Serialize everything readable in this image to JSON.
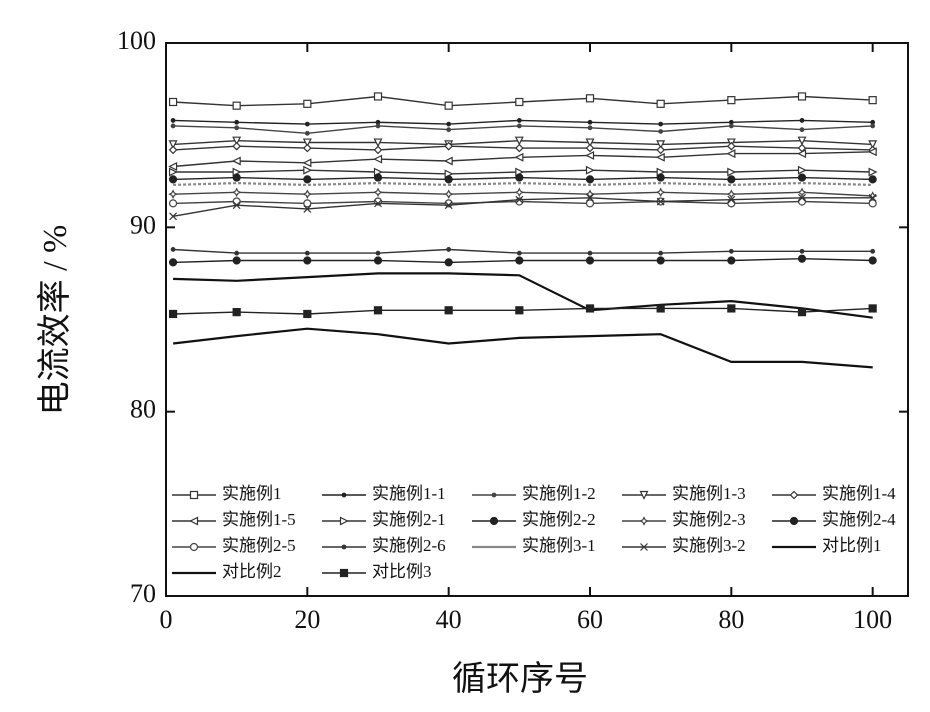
{
  "chart_data": {
    "type": "line",
    "x_label": "循环序号",
    "y_label": "电流效率 / %",
    "xlim": [
      0,
      105
    ],
    "ylim": [
      70,
      100
    ],
    "xticks": [
      0,
      20,
      40,
      60,
      80,
      100
    ],
    "yticks": [
      70,
      80,
      90,
      100
    ],
    "x": [
      1,
      10,
      20,
      30,
      40,
      50,
      60,
      70,
      80,
      90,
      100
    ],
    "series": [
      {
        "name": "实施例1",
        "color": "#333333",
        "marker": "square",
        "values": [
          96.8,
          96.6,
          96.7,
          97.1,
          96.6,
          96.8,
          97.0,
          96.7,
          96.9,
          97.1,
          96.9
        ]
      },
      {
        "name": "实施例1-1",
        "color": "#222222",
        "marker": "dot",
        "values": [
          95.8,
          95.7,
          95.6,
          95.7,
          95.6,
          95.8,
          95.7,
          95.6,
          95.7,
          95.8,
          95.7
        ]
      },
      {
        "name": "实施例1-2",
        "color": "#444444",
        "marker": "dot",
        "values": [
          95.5,
          95.4,
          95.1,
          95.5,
          95.3,
          95.5,
          95.4,
          95.2,
          95.5,
          95.3,
          95.5
        ]
      },
      {
        "name": "实施例1-3",
        "color": "#333333",
        "marker": "tri-down",
        "values": [
          94.5,
          94.7,
          94.6,
          94.6,
          94.5,
          94.7,
          94.6,
          94.5,
          94.6,
          94.7,
          94.5
        ]
      },
      {
        "name": "实施例1-4",
        "color": "#333333",
        "marker": "diamond",
        "values": [
          94.2,
          94.4,
          94.3,
          94.2,
          94.4,
          94.3,
          94.3,
          94.2,
          94.4,
          94.3,
          94.2
        ]
      },
      {
        "name": "实施例1-5",
        "color": "#333333",
        "marker": "tri-left",
        "values": [
          93.3,
          93.6,
          93.5,
          93.7,
          93.6,
          93.8,
          93.9,
          93.8,
          94.0,
          94.0,
          94.1
        ]
      },
      {
        "name": "实施例2-1",
        "color": "#333333",
        "marker": "tri-right",
        "values": [
          93.0,
          93.0,
          93.1,
          93.0,
          92.9,
          93.0,
          93.1,
          93.0,
          93.0,
          93.1,
          93.0
        ]
      },
      {
        "name": "实施例2-2",
        "color": "#222222",
        "marker": "filled-circle",
        "values": [
          92.6,
          92.7,
          92.6,
          92.7,
          92.6,
          92.7,
          92.6,
          92.7,
          92.6,
          92.7,
          92.6
        ]
      },
      {
        "name": "实施例2-3",
        "color": "#444444",
        "marker": "star",
        "values": [
          91.8,
          91.9,
          91.8,
          91.9,
          91.8,
          91.9,
          91.8,
          91.9,
          91.8,
          91.9,
          91.7
        ]
      },
      {
        "name": "实施例2-4",
        "color": "#222222",
        "marker": "filled-circle",
        "values": [
          88.1,
          88.2,
          88.2,
          88.2,
          88.1,
          88.2,
          88.2,
          88.2,
          88.2,
          88.3,
          88.2
        ]
      },
      {
        "name": "实施例2-5",
        "color": "#444444",
        "marker": "circle",
        "values": [
          91.3,
          91.4,
          91.3,
          91.4,
          91.3,
          91.4,
          91.3,
          91.4,
          91.3,
          91.4,
          91.3
        ]
      },
      {
        "name": "实施例2-6",
        "color": "#333333",
        "marker": "dot",
        "values": [
          88.8,
          88.6,
          88.6,
          88.6,
          88.8,
          88.6,
          88.6,
          88.6,
          88.7,
          88.7,
          88.7
        ]
      },
      {
        "name": "实施例3-1",
        "color": "#888888",
        "marker": "none",
        "values": [
          92.3,
          92.4,
          92.3,
          92.4,
          92.3,
          92.4,
          92.3,
          92.4,
          92.3,
          92.4,
          92.3
        ]
      },
      {
        "name": "实施例3-2",
        "color": "#333333",
        "marker": "x",
        "values": [
          90.6,
          91.2,
          91.0,
          91.3,
          91.2,
          91.5,
          91.6,
          91.4,
          91.5,
          91.6,
          91.6
        ]
      },
      {
        "name": "对比例1",
        "color": "#111111",
        "marker": "none",
        "values": [
          87.2,
          87.1,
          87.3,
          87.5,
          87.5,
          87.4,
          85.5,
          85.8,
          86.0,
          85.6,
          85.1
        ]
      },
      {
        "name": "对比例2",
        "color": "#111111",
        "marker": "none",
        "values": [
          83.7,
          84.1,
          84.5,
          84.2,
          83.7,
          84.0,
          84.1,
          84.2,
          82.7,
          82.7,
          82.4
        ]
      },
      {
        "name": "对比例3",
        "color": "#222222",
        "marker": "filled-square",
        "values": [
          85.3,
          85.4,
          85.3,
          85.5,
          85.5,
          85.5,
          85.6,
          85.6,
          85.6,
          85.4,
          85.6
        ]
      }
    ]
  }
}
